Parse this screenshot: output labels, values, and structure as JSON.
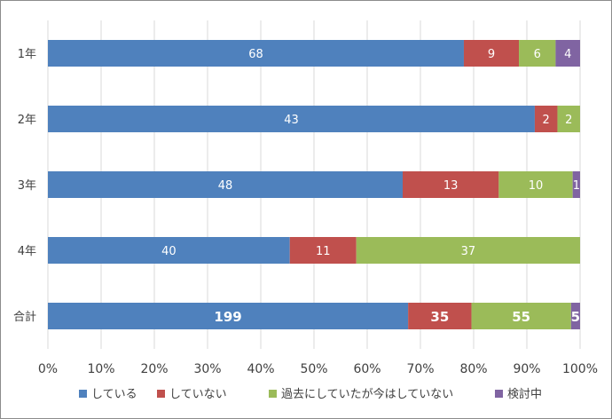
{
  "chart_data": {
    "type": "bar",
    "orientation": "horizontal",
    "stacked": "percent",
    "categories": [
      "1年",
      "2年",
      "3年",
      "4年",
      "合計"
    ],
    "series": [
      {
        "name": "している",
        "color": "#4F81BD",
        "values": [
          68,
          43,
          48,
          40,
          199
        ]
      },
      {
        "name": "していない",
        "color": "#C0504D",
        "values": [
          9,
          2,
          13,
          11,
          35
        ]
      },
      {
        "name": "過去にしていたが今はしていない",
        "color": "#9BBB59",
        "values": [
          6,
          2,
          10,
          37,
          55
        ]
      },
      {
        "name": "検討中",
        "color": "#8064A2",
        "values": [
          4,
          0,
          1,
          0,
          5
        ]
      }
    ],
    "bold_labels_category": "合計",
    "xticks": [
      "0%",
      "10%",
      "20%",
      "30%",
      "40%",
      "50%",
      "60%",
      "70%",
      "80%",
      "90%",
      "100%"
    ],
    "xlim": [
      0,
      100
    ],
    "grid": "vertical",
    "legend": "bottom"
  }
}
